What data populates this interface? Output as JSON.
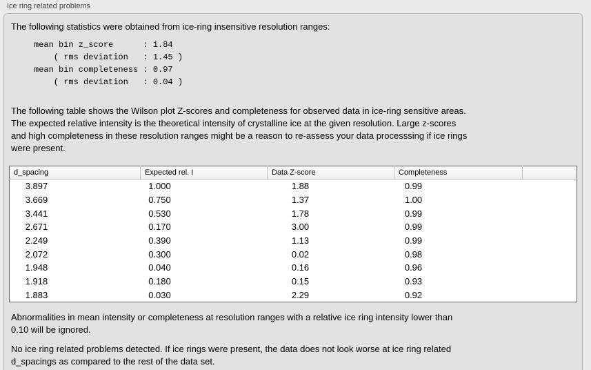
{
  "group": {
    "title": "Ice ring related problems"
  },
  "report": {
    "intro": "The following statistics were obtained from ice-ring insensitive resolution ranges:",
    "summary_stats_block": "mean bin z_score      : 1.84\n    ( rms deviation   : 1.45 )\nmean bin completeness : 0.97\n    ( rms deviation   : 0.04 )",
    "table_note": "The following table shows the Wilson plot Z-scores and completeness for observed data in ice-ring sensitive areas.\nThe expected relative intensity is the theoretical intensity of crystalline ice at the given resolution. Large z-scores\nand high completeness in these resolution ranges might be a reason to re-assess your data processsing if ice rings\nwere present.",
    "ignore_note": "Abnormalities in mean intensity or completeness at resolution ranges with a relative ice ring intensity lower than\n0.10 will be ignored.",
    "conclusion": "No ice ring related problems detected. If ice rings were present, the data does not look worse at ice ring related\nd_spacings as compared to the rest of the data set."
  },
  "stats": {
    "mean_bin_z_score": "1.84",
    "z_score_rms_deviation": "1.45",
    "mean_bin_completeness": "0.97",
    "completeness_rms_deviation": "0.04"
  },
  "table": {
    "columns": [
      "d_spacing",
      "Expected rel. I",
      "Data Z-score",
      "Completeness"
    ],
    "rows": [
      [
        "3.897",
        "1.000",
        "1.88",
        "0.99"
      ],
      [
        "3.669",
        "0.750",
        "1.37",
        "1.00"
      ],
      [
        "3.441",
        "0.530",
        "1.78",
        "0.99"
      ],
      [
        "2.671",
        "0.170",
        "3.00",
        "0.99"
      ],
      [
        "2.249",
        "0.390",
        "1.13",
        "0.99"
      ],
      [
        "2.072",
        "0.300",
        "0.02",
        "0.98"
      ],
      [
        "1.948",
        "0.040",
        "0.16",
        "0.96"
      ],
      [
        "1.918",
        "0.180",
        "0.15",
        "0.93"
      ],
      [
        "1.883",
        "0.030",
        "2.29",
        "0.92"
      ]
    ]
  },
  "colors": {
    "page_bg": "#ebebeb",
    "panel_bg": "#e2e2e2",
    "table_border": "#646464",
    "header_bg": "#f6f6f6"
  }
}
